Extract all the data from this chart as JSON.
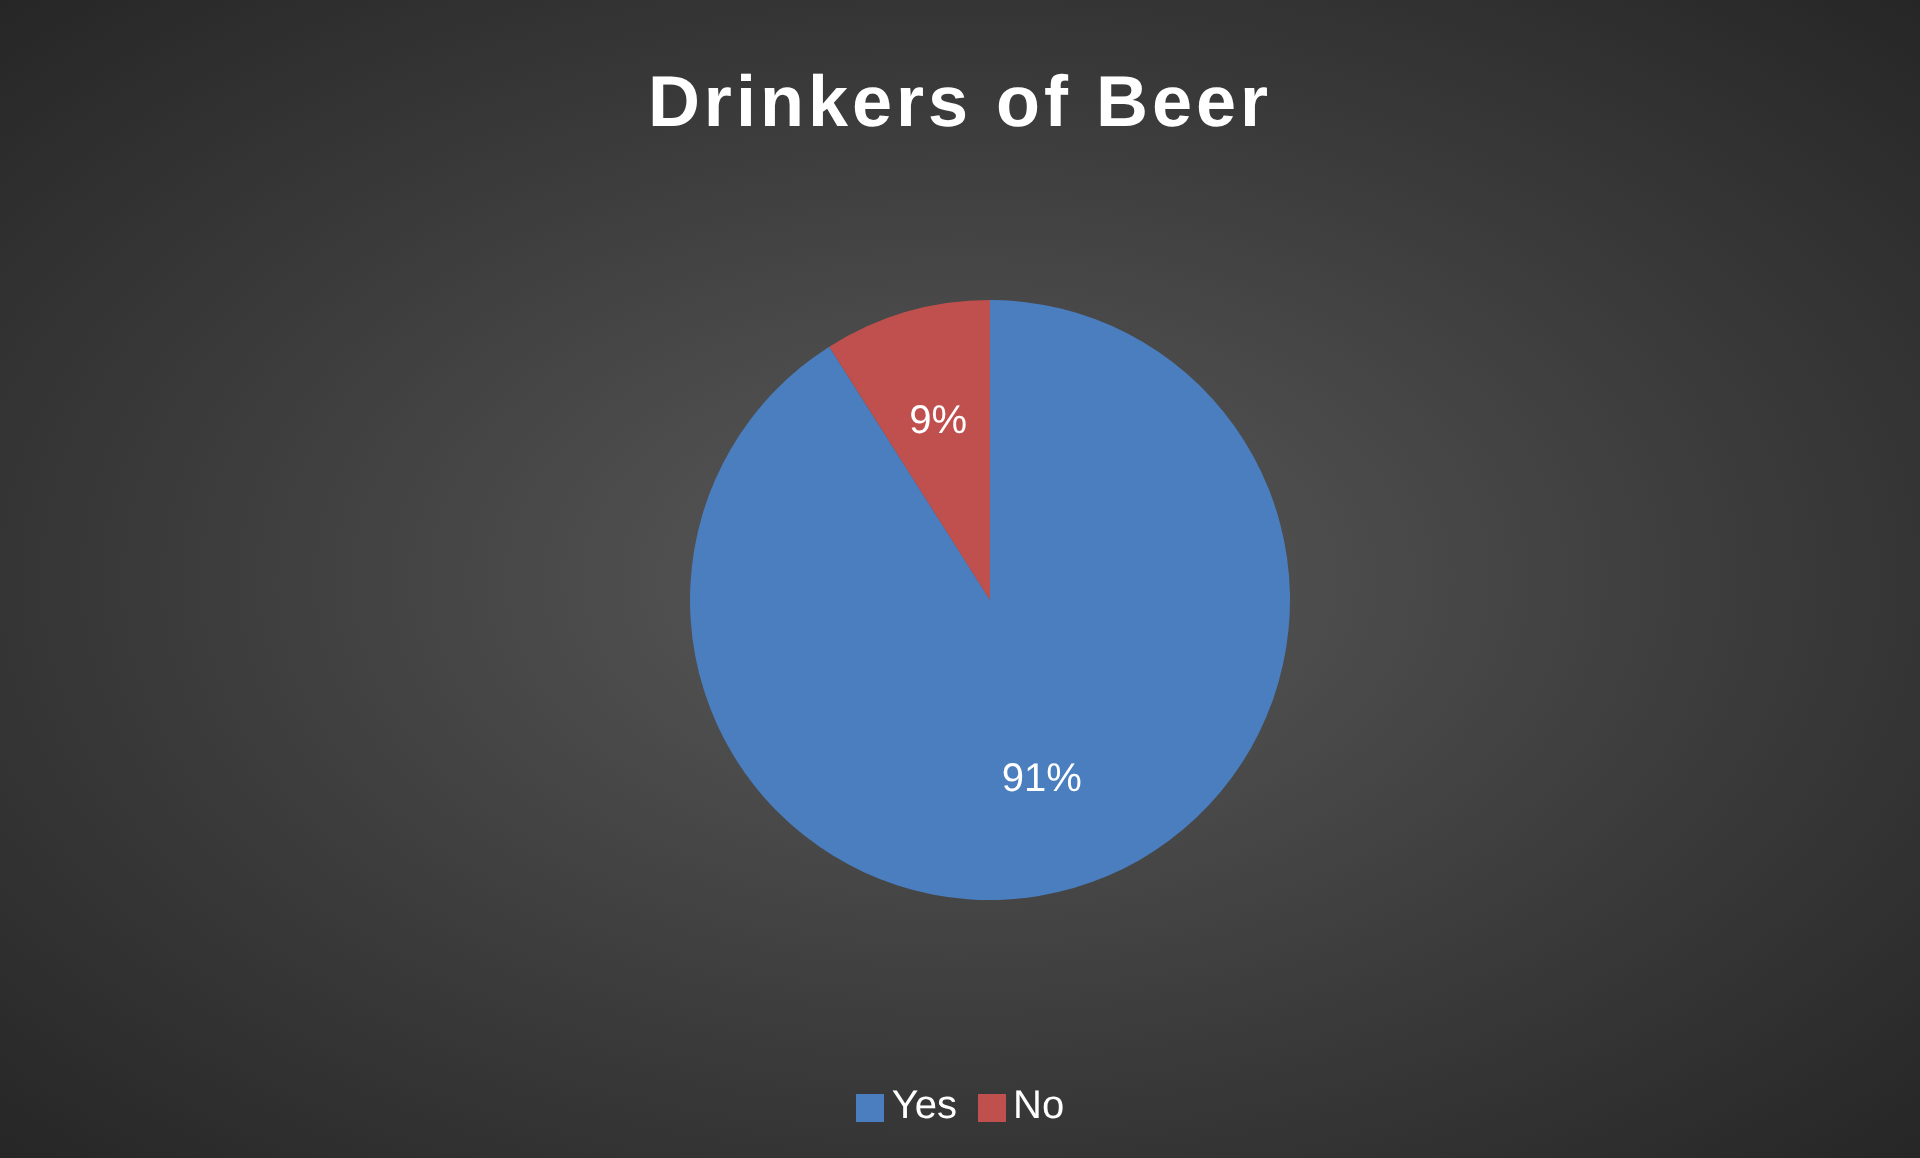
{
  "chart_data": {
    "type": "pie",
    "title": "Drinkers of Beer",
    "categories": [
      "Yes",
      "No"
    ],
    "values": [
      91,
      9
    ],
    "colors": [
      "#4a7ebf",
      "#c0504d"
    ],
    "value_labels": [
      "91%",
      "9%"
    ],
    "legend": "bottom"
  }
}
